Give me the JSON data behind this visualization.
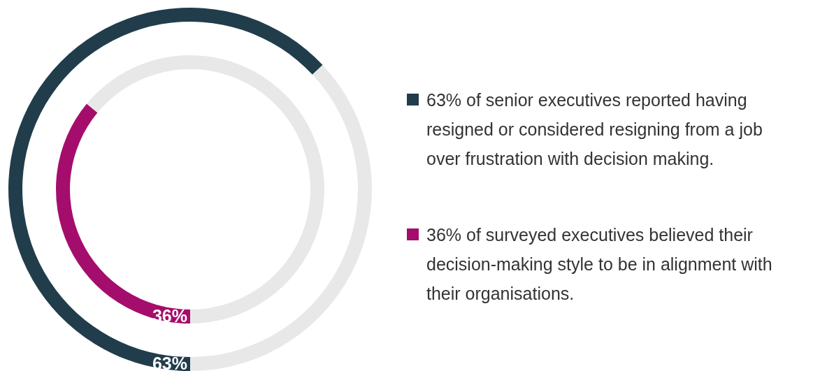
{
  "chart_data": [
    {
      "type": "donut",
      "categories": [
        "63% of senior executives reported having resigned or considered resigning from a job over frustration with decision making.",
        null
      ],
      "values": [
        63,
        37
      ],
      "colors": [
        "#213d4b",
        "#e8e8e8"
      ],
      "value_labels": [
        "63%",
        null
      ],
      "legend": "right"
    },
    {
      "type": "donut",
      "categories": [
        "36% of surveyed executives believed their decision-making style to be in alignment with their organisations.",
        null
      ],
      "values": [
        36,
        64
      ],
      "colors": [
        "#a50d6c",
        "#e8e8e8"
      ],
      "value_labels": [
        "36%",
        null
      ],
      "legend": "right"
    }
  ]
}
